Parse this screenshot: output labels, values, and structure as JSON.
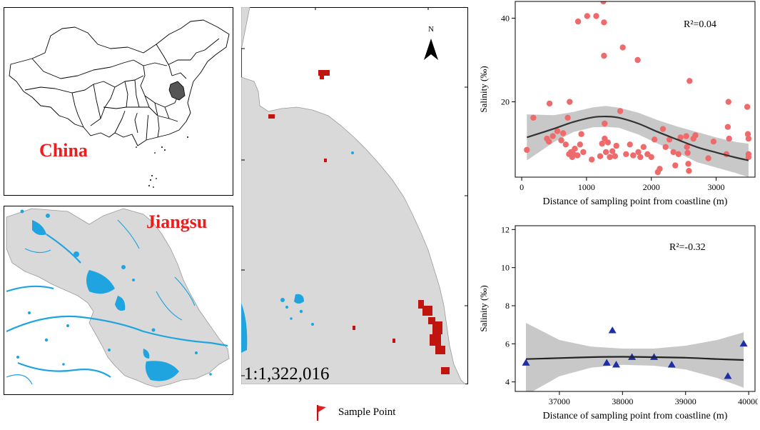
{
  "maps": {
    "china_label": "China",
    "jiangsu_label": "Jiangsu",
    "north_label": "N",
    "scale_text": "1:1,322,016",
    "legend_label": "Sample Point",
    "colors": {
      "land": "#d9d9d9",
      "water": "#1fa4e0",
      "highlight": "#555555",
      "sample": "#c0140f",
      "label": "#ef1c1c"
    }
  },
  "chart_data": [
    {
      "type": "scatter",
      "title": "",
      "xlabel": "Distance of sampling point from coastline (m)",
      "ylabel": "Salinity (‰)",
      "annotation": "R²=0.04",
      "xlim": [
        -100,
        3600
      ],
      "ylim": [
        2,
        44
      ],
      "xticks": [
        0,
        1000,
        2000,
        3000
      ],
      "yticks": [
        20,
        40
      ],
      "marker": "circle",
      "marker_color": "#ef6b6b",
      "fit_color": "#333333",
      "band_color": "#c8c8c8",
      "points": [
        [
          80,
          8.5
        ],
        [
          180,
          16.2
        ],
        [
          390,
          11.2
        ],
        [
          420,
          10.5
        ],
        [
          430,
          19.6
        ],
        [
          480,
          11.8
        ],
        [
          550,
          13.0
        ],
        [
          610,
          10.8
        ],
        [
          640,
          12.5
        ],
        [
          680,
          9.8
        ],
        [
          710,
          16.2
        ],
        [
          730,
          7.5
        ],
        [
          740,
          20.0
        ],
        [
          760,
          8.0
        ],
        [
          780,
          6.8
        ],
        [
          800,
          7.5
        ],
        [
          820,
          8.8
        ],
        [
          860,
          7.2
        ],
        [
          900,
          9.8
        ],
        [
          920,
          12.3
        ],
        [
          950,
          8.0
        ],
        [
          870,
          39.2
        ],
        [
          1010,
          40.5
        ],
        [
          1080,
          6.2
        ],
        [
          1150,
          40.5
        ],
        [
          1210,
          7.0
        ],
        [
          1240,
          10.0
        ],
        [
          1260,
          44.0
        ],
        [
          1270,
          39.0
        ],
        [
          1270,
          31.0
        ],
        [
          1280,
          14.8
        ],
        [
          1280,
          11.2
        ],
        [
          1300,
          8.0
        ],
        [
          1330,
          10.3
        ],
        [
          1360,
          6.8
        ],
        [
          1400,
          8.2
        ],
        [
          1440,
          7.0
        ],
        [
          1460,
          9.5
        ],
        [
          1520,
          17.8
        ],
        [
          1560,
          33.0
        ],
        [
          1610,
          7.5
        ],
        [
          1670,
          9.8
        ],
        [
          1720,
          7.2
        ],
        [
          1790,
          30.0
        ],
        [
          1800,
          8.0
        ],
        [
          1830,
          6.8
        ],
        [
          1880,
          9.2
        ],
        [
          1940,
          7.5
        ],
        [
          2000,
          6.8
        ],
        [
          2050,
          11.0
        ],
        [
          2100,
          3.2
        ],
        [
          2130,
          4.0
        ],
        [
          2180,
          13.5
        ],
        [
          2220,
          9.2
        ],
        [
          2280,
          11.0
        ],
        [
          2340,
          8.0
        ],
        [
          2370,
          4.8
        ],
        [
          2420,
          7.5
        ],
        [
          2450,
          11.5
        ],
        [
          2540,
          11.8
        ],
        [
          2550,
          9.2
        ],
        [
          2560,
          7.8
        ],
        [
          2570,
          5.2
        ],
        [
          2580,
          3.5
        ],
        [
          2590,
          25.0
        ],
        [
          2650,
          11.2
        ],
        [
          2680,
          12.0
        ],
        [
          2880,
          6.5
        ],
        [
          2960,
          10.5
        ],
        [
          3160,
          7.5
        ],
        [
          3180,
          14.0
        ],
        [
          3190,
          20.0
        ],
        [
          3200,
          11.2
        ],
        [
          3480,
          18.8
        ],
        [
          3490,
          12.3
        ],
        [
          3500,
          11.2
        ],
        [
          3500,
          7.5
        ],
        [
          3500,
          6.8
        ]
      ],
      "fit": {
        "x": [
          80,
          500,
          800,
          1100,
          1300,
          1500,
          1800,
          2100,
          2400,
          2700,
          3000,
          3300,
          3500
        ],
        "y": [
          11.5,
          13.6,
          15.2,
          16.3,
          16.5,
          16.2,
          14.8,
          12.8,
          11.0,
          9.2,
          7.9,
          6.7,
          6.0
        ],
        "upper": [
          17.0,
          16.8,
          17.6,
          18.7,
          19.0,
          18.6,
          17.4,
          15.6,
          14.1,
          12.8,
          11.5,
          10.4,
          10.0
        ],
        "lower": [
          6.0,
          10.4,
          12.8,
          13.9,
          14.0,
          13.8,
          12.2,
          10.0,
          7.9,
          5.6,
          4.3,
          3.0,
          2.0
        ]
      }
    },
    {
      "type": "scatter",
      "title": "",
      "xlabel": "Distance of sampling point from coastline (m)",
      "ylabel": "Salinity (‰)",
      "annotation": "R²=-0.32",
      "xlim": [
        36300,
        40100
      ],
      "ylim": [
        3.5,
        12.2
      ],
      "xticks": [
        37000,
        38000,
        39000,
        40000
      ],
      "yticks": [
        4,
        6,
        8,
        10,
        12
      ],
      "marker": "triangle",
      "marker_color": "#1c2ea8",
      "fit_color": "#222222",
      "band_color": "#c8c8c8",
      "points": [
        [
          36470,
          5.0
        ],
        [
          37750,
          5.0
        ],
        [
          37840,
          6.7
        ],
        [
          37900,
          4.9
        ],
        [
          38150,
          5.3
        ],
        [
          38500,
          5.3
        ],
        [
          38780,
          4.9
        ],
        [
          39670,
          4.3
        ],
        [
          39920,
          6.0
        ]
      ],
      "fit": {
        "x": [
          36470,
          37000,
          37500,
          38000,
          38500,
          39000,
          39500,
          39920
        ],
        "y": [
          5.2,
          5.25,
          5.3,
          5.32,
          5.3,
          5.27,
          5.2,
          5.15
        ],
        "upper": [
          7.1,
          6.2,
          5.85,
          5.75,
          5.75,
          5.9,
          6.2,
          6.6
        ],
        "lower": [
          3.3,
          4.3,
          4.75,
          4.9,
          4.85,
          4.65,
          4.2,
          3.7
        ]
      }
    }
  ]
}
